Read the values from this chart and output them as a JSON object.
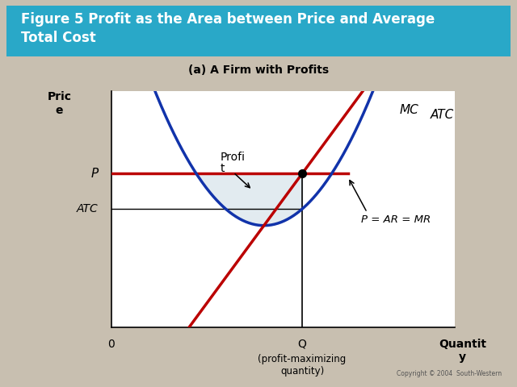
{
  "title_box_text": "Figure 5 Profit as the Area between Price and Average\nTotal Cost",
  "subtitle": "(a) A Firm with Profits",
  "title_bg_color": "#29a8c8",
  "title_text_color": "#ffffff",
  "bg_color": "#c8bfb0",
  "plot_bg_color": "#ffffff",
  "x_label": "Quantit\ny",
  "y_label_line1": "Pric",
  "y_label_line2": "e",
  "x_sub_label": "(profit-maximizing\nquantity)",
  "y_label_P": "P",
  "y_label_ATC": "ATC",
  "label_MC": "MC",
  "label_ATC": "ATC",
  "label_P_eq": "P = AR = MR",
  "label_profit_line1": "Profi",
  "label_profit_line2": "t",
  "profit_fill_color": "#dde8ee",
  "profit_fill_alpha": 0.85,
  "mc_color": "#bb0000",
  "atc_color": "#1133aa",
  "mr_color": "#bb0000",
  "dot_color": "#000000",
  "Q_intersect": 5.0,
  "P_level": 6.5,
  "ATC_level": 5.0,
  "atc_min_x": 4.0,
  "atc_min_val": 4.3,
  "x_min": 0,
  "x_max": 9,
  "y_min": 0,
  "y_max": 10,
  "copyright": "Copyright © 2004  South-Western"
}
